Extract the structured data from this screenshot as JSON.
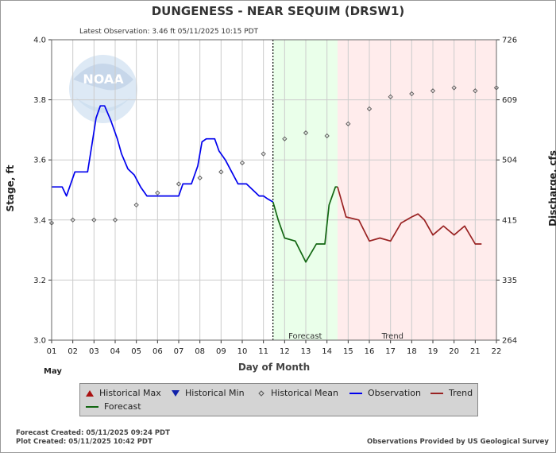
{
  "header": {
    "title": "DUNGENESS - NEAR SEQUIM  (DRSW1)",
    "latest_observation": "Latest Observation: 3.46 ft 05/11/2025 10:15 PDT"
  },
  "axes": {
    "ylabel_left": "Stage, ft",
    "ylabel_right": "Discharge, cfs",
    "xlabel": "Day of Month",
    "month": "May"
  },
  "regions": {
    "forecast_label": "Forecast",
    "trend_label": "Trend"
  },
  "logo": {
    "text": "NOAA"
  },
  "legend": {
    "items": [
      {
        "label": "Historical Max",
        "marker": "triangle-up",
        "color": "#aa1111"
      },
      {
        "label": "Historical Min",
        "marker": "triangle-down",
        "color": "#1122aa"
      },
      {
        "label": "Historical Mean",
        "marker": "diamond",
        "color": "#555555"
      },
      {
        "label": "Observation",
        "marker": "line",
        "color": "#0000ee"
      },
      {
        "label": "Trend",
        "marker": "line",
        "color": "#992222"
      },
      {
        "label": "Forecast",
        "marker": "line",
        "color": "#116611"
      }
    ]
  },
  "footer": {
    "forecast_created": "Forecast Created: 05/11/2025 09:24 PDT",
    "plot_created": "Plot Created: 05/11/2025 10:42 PDT",
    "provider": "Observations Provided by US Geological Survey"
  },
  "colors": {
    "observation": "#0000ee",
    "forecast": "#116611",
    "trend": "#992222",
    "forecast_band": "#eaffea",
    "trend_band": "#ffecec",
    "grid": "#cccccc"
  },
  "chart_data": {
    "type": "line",
    "x_range": [
      1,
      22
    ],
    "ylim": [
      3.0,
      4.0
    ],
    "y_ticks": [
      3.0,
      3.2,
      3.4,
      3.6,
      3.8,
      4.0
    ],
    "x_ticks": [
      "01",
      "02",
      "03",
      "04",
      "05",
      "06",
      "07",
      "08",
      "09",
      "10",
      "11",
      "12",
      "13",
      "14",
      "15",
      "16",
      "17",
      "18",
      "19",
      "20",
      "21",
      "22"
    ],
    "right_axis_ticks": [
      {
        "stage": 3.0,
        "label": "264"
      },
      {
        "stage": 3.2,
        "label": "335"
      },
      {
        "stage": 3.4,
        "label": "415"
      },
      {
        "stage": 3.6,
        "label": "504"
      },
      {
        "stage": 3.8,
        "label": "609"
      },
      {
        "stage": 4.0,
        "label": "726"
      }
    ],
    "current_time_day": 11.45,
    "forecast_region": [
      11.45,
      14.5
    ],
    "trend_region": [
      14.5,
      22
    ],
    "series": [
      {
        "name": "Observation",
        "points": [
          [
            1.0,
            3.51
          ],
          [
            1.5,
            3.51
          ],
          [
            1.7,
            3.48
          ],
          [
            1.85,
            3.51
          ],
          [
            2.1,
            3.56
          ],
          [
            2.7,
            3.56
          ],
          [
            2.9,
            3.65
          ],
          [
            3.1,
            3.74
          ],
          [
            3.3,
            3.78
          ],
          [
            3.5,
            3.78
          ],
          [
            3.8,
            3.73
          ],
          [
            4.1,
            3.67
          ],
          [
            4.3,
            3.62
          ],
          [
            4.6,
            3.57
          ],
          [
            4.9,
            3.55
          ],
          [
            5.2,
            3.51
          ],
          [
            5.5,
            3.48
          ],
          [
            6.0,
            3.48
          ],
          [
            6.5,
            3.48
          ],
          [
            7.0,
            3.48
          ],
          [
            7.2,
            3.52
          ],
          [
            7.6,
            3.52
          ],
          [
            7.9,
            3.58
          ],
          [
            8.1,
            3.66
          ],
          [
            8.3,
            3.67
          ],
          [
            8.7,
            3.67
          ],
          [
            8.9,
            3.63
          ],
          [
            9.2,
            3.6
          ],
          [
            9.5,
            3.56
          ],
          [
            9.8,
            3.52
          ],
          [
            10.2,
            3.52
          ],
          [
            10.5,
            3.5
          ],
          [
            10.8,
            3.48
          ],
          [
            11.0,
            3.48
          ],
          [
            11.2,
            3.47
          ],
          [
            11.45,
            3.46
          ]
        ]
      },
      {
        "name": "Forecast",
        "points": [
          [
            11.45,
            3.46
          ],
          [
            11.7,
            3.4
          ],
          [
            12.0,
            3.34
          ],
          [
            12.5,
            3.33
          ],
          [
            13.0,
            3.26
          ],
          [
            13.5,
            3.32
          ],
          [
            13.9,
            3.32
          ],
          [
            14.1,
            3.45
          ],
          [
            14.4,
            3.51
          ],
          [
            14.5,
            3.51
          ]
        ]
      },
      {
        "name": "Trend",
        "points": [
          [
            14.5,
            3.51
          ],
          [
            14.9,
            3.41
          ],
          [
            15.5,
            3.4
          ],
          [
            16.0,
            3.33
          ],
          [
            16.5,
            3.34
          ],
          [
            17.0,
            3.33
          ],
          [
            17.5,
            3.39
          ],
          [
            18.0,
            3.41
          ],
          [
            18.3,
            3.42
          ],
          [
            18.6,
            3.4
          ],
          [
            19.0,
            3.35
          ],
          [
            19.5,
            3.38
          ],
          [
            20.0,
            3.35
          ],
          [
            20.5,
            3.38
          ],
          [
            21.0,
            3.32
          ],
          [
            21.3,
            3.32
          ]
        ]
      },
      {
        "name": "Historical Mean",
        "points": [
          [
            1,
            3.39
          ],
          [
            2,
            3.4
          ],
          [
            3,
            3.4
          ],
          [
            4,
            3.4
          ],
          [
            5,
            3.45
          ],
          [
            6,
            3.49
          ],
          [
            7,
            3.52
          ],
          [
            8,
            3.54
          ],
          [
            9,
            3.56
          ],
          [
            10,
            3.59
          ],
          [
            11,
            3.62
          ],
          [
            12,
            3.67
          ],
          [
            13,
            3.69
          ],
          [
            14,
            3.68
          ],
          [
            15,
            3.72
          ],
          [
            16,
            3.77
          ],
          [
            17,
            3.81
          ],
          [
            18,
            3.82
          ],
          [
            19,
            3.83
          ],
          [
            20,
            3.84
          ],
          [
            21,
            3.83
          ],
          [
            22,
            3.84
          ]
        ]
      }
    ]
  }
}
